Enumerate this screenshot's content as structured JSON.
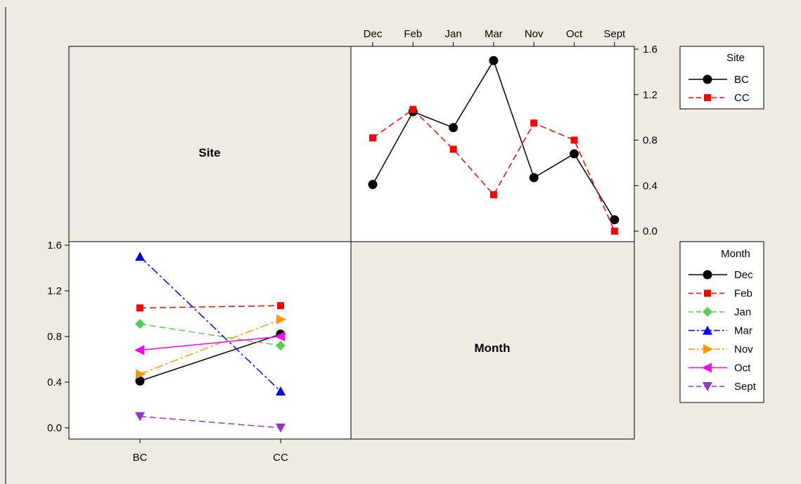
{
  "chart_data": {
    "type": "line",
    "subtype": "interaction-plot-matrix",
    "panels": [
      {
        "id": "site-vs-month",
        "x_factor": "Month",
        "categories": [
          "Dec",
          "Feb",
          "Jan",
          "Mar",
          "Nov",
          "Oct",
          "Sept"
        ],
        "ylim": [
          0.0,
          1.6
        ],
        "yticks": [
          "0.0",
          "0.4",
          "0.8",
          "1.2",
          "1.6"
        ],
        "legend": {
          "title": "Site",
          "placement": "right",
          "entries": [
            "BC",
            "CC"
          ]
        },
        "series": [
          {
            "name": "BC",
            "color": "#000000",
            "marker": "circle",
            "dash": "solid",
            "values": [
              0.41,
              1.05,
              0.91,
              1.5,
              0.47,
              0.68,
              0.1
            ]
          },
          {
            "name": "CC",
            "color": "#ff0000",
            "marker": "square",
            "dash": "dashed",
            "values": [
              0.82,
              1.07,
              0.72,
              0.32,
              0.95,
              0.8,
              0.0
            ]
          }
        ]
      },
      {
        "id": "month-vs-site",
        "x_factor": "Site",
        "categories": [
          "BC",
          "CC"
        ],
        "ylim": [
          0.0,
          1.6
        ],
        "yticks": [
          "0.0",
          "0.4",
          "0.8",
          "1.2",
          "1.6"
        ],
        "legend": {
          "title": "Month",
          "placement": "right",
          "entries": [
            "Dec",
            "Feb",
            "Jan",
            "Mar",
            "Nov",
            "Oct",
            "Sept"
          ]
        },
        "series": [
          {
            "name": "Dec",
            "color": "#000000",
            "marker": "circle",
            "dash": "solid",
            "values": [
              0.41,
              0.82
            ]
          },
          {
            "name": "Feb",
            "color": "#ff0000",
            "marker": "square",
            "dash": "dashed",
            "values": [
              1.05,
              1.07
            ]
          },
          {
            "name": "Jan",
            "color": "#55cc55",
            "marker": "diamond",
            "dash": "dashed",
            "values": [
              0.91,
              0.72
            ]
          },
          {
            "name": "Mar",
            "color": "#0000ff",
            "marker": "triangle-up",
            "dash": "dashdot",
            "values": [
              1.5,
              0.32
            ]
          },
          {
            "name": "Nov",
            "color": "#ff9900",
            "marker": "triangle-right",
            "dash": "dashdot",
            "values": [
              0.47,
              0.95
            ]
          },
          {
            "name": "Oct",
            "color": "#ff00ff",
            "marker": "triangle-left",
            "dash": "solid",
            "values": [
              0.68,
              0.8
            ]
          },
          {
            "name": "Sept",
            "color": "#9933cc",
            "marker": "triangle-down",
            "dash": "dashed",
            "values": [
              0.1,
              0.0
            ]
          }
        ]
      }
    ],
    "diagonal_labels": [
      "Site",
      "Month"
    ],
    "grid": false
  },
  "colors": {
    "background": "#efebe2",
    "panel_fill": "#ffffff",
    "diagonal_fill": "#efebe2"
  }
}
